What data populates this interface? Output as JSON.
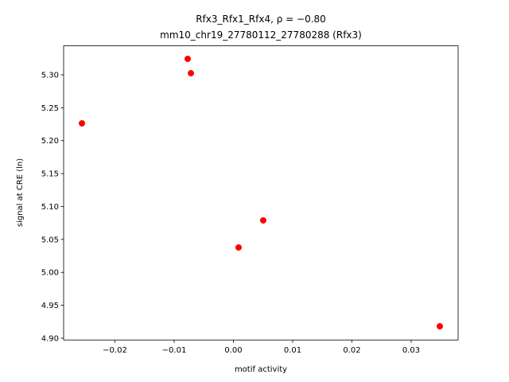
{
  "chart_data": {
    "type": "scatter",
    "title": "Rfx3_Rfx1_Rfx4, ρ = −0.80",
    "subtitle": "mm10_chr19_27780112_27780288 (Rfx3)",
    "x_label": "motif activity",
    "y_label": "signal at CRE (ln)",
    "color": "#ff0000",
    "x": [
      -0.02557,
      -0.00772,
      -0.00718,
      0.00503,
      0.00087,
      0.03483
    ],
    "values": [
      5.2263,
      5.3242,
      5.3024,
      5.0789,
      5.0378,
      4.9181
    ],
    "xlim": [
      -0.02866,
      0.03792
    ],
    "ylim": [
      4.8973,
      5.344
    ],
    "xticks": [
      {
        "value": -0.02,
        "label": "−0.02"
      },
      {
        "value": -0.01,
        "label": "−0.01"
      },
      {
        "value": 0,
        "label": "0.00"
      },
      0.01,
      0.02,
      0.03
    ],
    "yticks": [
      {
        "value": 4.9,
        "label": "4.90"
      },
      4.95,
      {
        "value": 5.0,
        "label": "5.00"
      },
      5.05,
      {
        "value": 5.1,
        "label": "5.10"
      },
      5.15,
      {
        "value": 5.2,
        "label": "5.20"
      },
      5.25,
      {
        "value": 5.3,
        "label": "5.30"
      }
    ]
  }
}
